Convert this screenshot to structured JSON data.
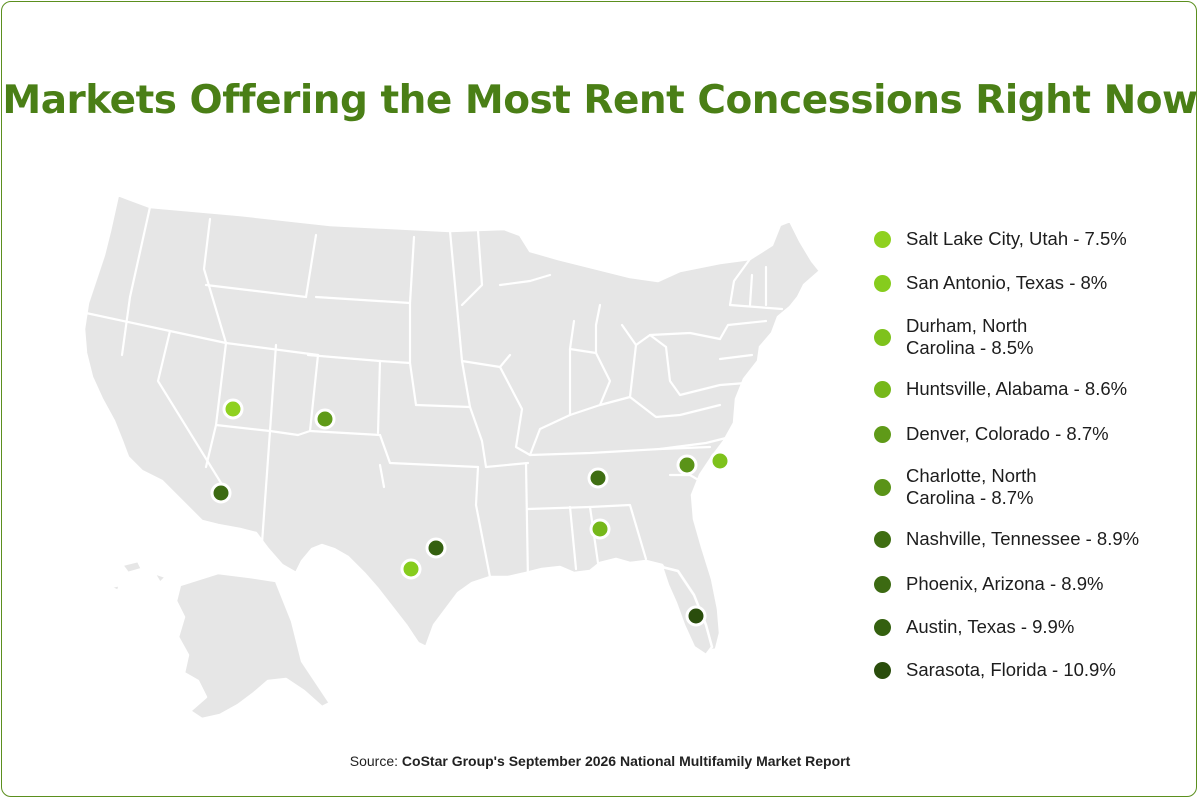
{
  "title": "Markets Offering the Most Rent Concessions Right Now",
  "source": {
    "prefix": "Source: ",
    "text": "CoStar Group's September 2026 National Multifamily Market Report"
  },
  "colors": {
    "title": "#4a7f16",
    "land": "#e6e6e6",
    "border": "#ffffff",
    "frame": "#5b8f1e"
  },
  "markets": [
    {
      "label": "Salt Lake City, Utah - 7.5%",
      "line1": "Salt Lake City, Utah - 7.5%",
      "line2": "",
      "city": "Salt Lake City",
      "state": "Utah",
      "rate": 7.5,
      "color": "#8fd11f"
    },
    {
      "label": "San Antonio, Texas - 8%",
      "line1": "San Antonio, Texas - 8%",
      "line2": "",
      "city": "San Antonio",
      "state": "Texas",
      "rate": 8,
      "color": "#86cc1d"
    },
    {
      "label": "Durham, North Carolina - 8.5%",
      "line1": "Durham, North",
      "line2": "Carolina - 8.5%",
      "city": "Durham",
      "state": "North Carolina",
      "rate": 8.5,
      "color": "#7ec21c"
    },
    {
      "label": "Huntsville, Alabama - 8.6%",
      "line1": "Huntsville, Alabama - 8.6%",
      "line2": "",
      "city": "Huntsville",
      "state": "Alabama",
      "rate": 8.6,
      "color": "#76b81a"
    },
    {
      "label": "Denver, Colorado - 8.7%",
      "line1": "Denver, Colorado - 8.7%",
      "line2": "",
      "city": "Denver",
      "state": "Colorado",
      "rate": 8.7,
      "color": "#5f9a18"
    },
    {
      "label": "Charlotte, North Carolina - 8.7%",
      "line1": "Charlotte, North",
      "line2": "Carolina - 8.7%",
      "city": "Charlotte",
      "state": "North Carolina",
      "rate": 8.7,
      "color": "#5a9318"
    },
    {
      "label": "Nashville, Tennessee - 8.9%",
      "line1": "Nashville, Tennessee - 8.9%",
      "line2": "",
      "city": "Nashville",
      "state": "Tennessee",
      "rate": 8.9,
      "color": "#3f6e12"
    },
    {
      "label": "Phoenix, Arizona - 8.9%",
      "line1": "Phoenix, Arizona - 8.9%",
      "line2": "",
      "city": "Phoenix",
      "state": "Arizona",
      "rate": 8.9,
      "color": "#3c6a12"
    },
    {
      "label": "Austin, Texas - 9.9%",
      "line1": "Austin, Texas - 9.9%",
      "line2": "",
      "city": "Austin",
      "state": "Texas",
      "rate": 9.9,
      "color": "#34600f"
    },
    {
      "label": "Sarasota, Florida - 10.9%",
      "line1": "Sarasota, Florida - 10.9%",
      "line2": "",
      "city": "Sarasota",
      "state": "Florida",
      "rate": 10.9,
      "color": "#2a4d0c"
    }
  ]
}
